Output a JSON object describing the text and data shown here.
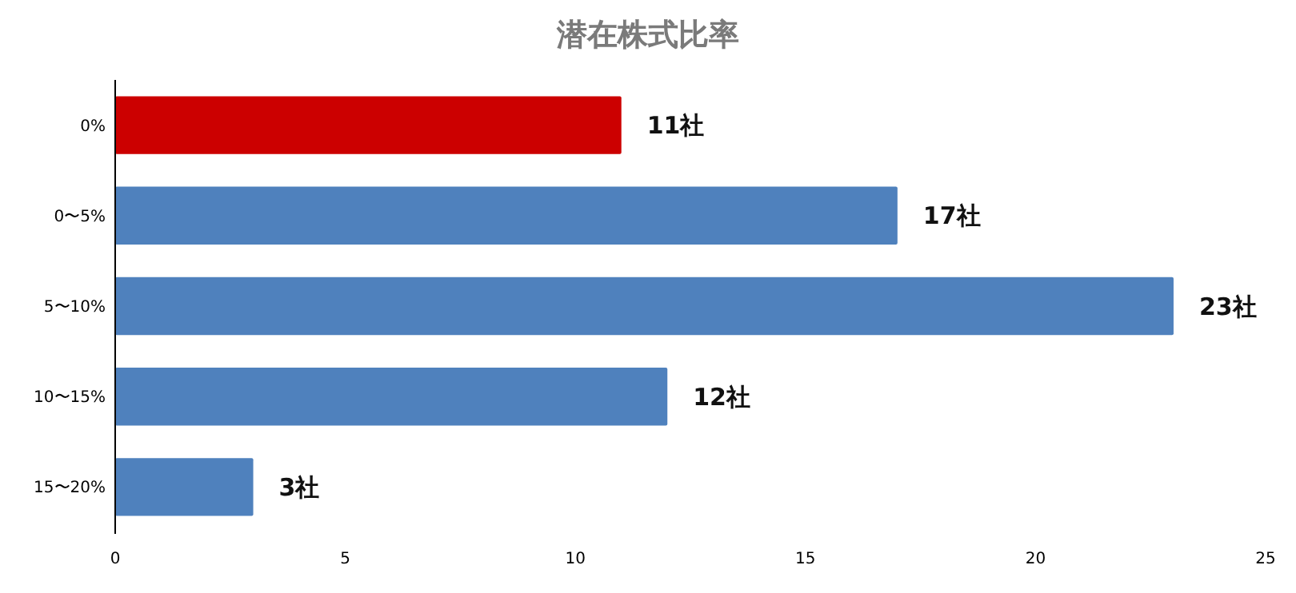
{
  "chart_data": {
    "type": "bar",
    "orientation": "horizontal",
    "title": "潜在株式比率",
    "categories": [
      "0%",
      "0〜5%",
      "5〜10%",
      "10〜15%",
      "15〜20%"
    ],
    "values": [
      11,
      17,
      23,
      12,
      3
    ],
    "colors": [
      "#cc0000",
      "#4f81bd",
      "#4f81bd",
      "#4f81bd",
      "#4f81bd"
    ],
    "value_labels": [
      "11社",
      "17社",
      "23社",
      "12社",
      "3社"
    ],
    "xlim": [
      0,
      25
    ],
    "xticks": [
      0,
      5,
      10,
      15,
      20,
      25
    ],
    "grid": false
  }
}
